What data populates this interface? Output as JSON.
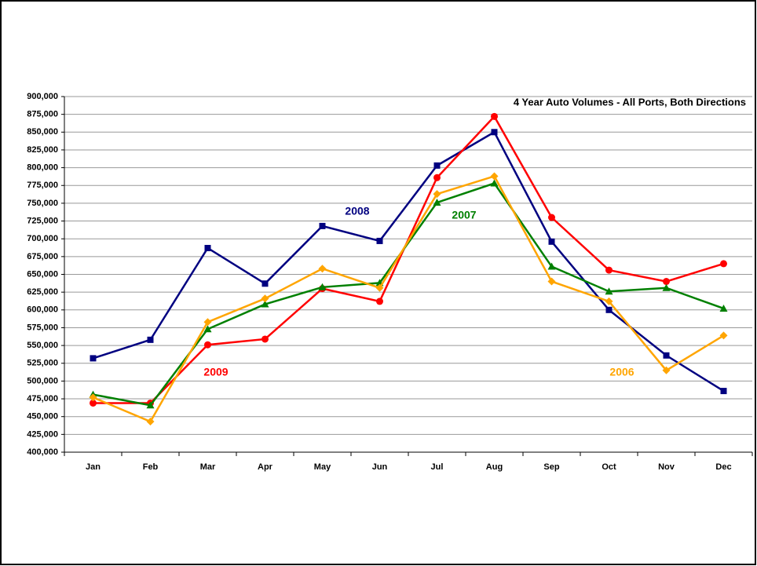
{
  "chart_data": {
    "type": "line",
    "title": "4 Year Auto Volumes - All Ports, Both Directions",
    "categories": [
      "Jan",
      "Feb",
      "Mar",
      "Apr",
      "May",
      "Jun",
      "Jul",
      "Aug",
      "Sep",
      "Oct",
      "Nov",
      "Dec"
    ],
    "series": [
      {
        "name": "2008",
        "color": "#000080",
        "marker": "square",
        "values": [
          532000,
          558000,
          687000,
          637000,
          718000,
          697000,
          803000,
          850000,
          696000,
          600000,
          536000,
          486000
        ]
      },
      {
        "name": "2009",
        "color": "#ff0000",
        "marker": "circle",
        "values": [
          469000,
          469000,
          551000,
          559000,
          630000,
          612000,
          786000,
          872000,
          730000,
          656000,
          640000,
          665000
        ]
      },
      {
        "name": "2007",
        "color": "#008000",
        "marker": "triangle",
        "values": [
          481000,
          466000,
          573000,
          608000,
          632000,
          638000,
          751000,
          778000,
          661000,
          626000,
          631000,
          602000
        ]
      },
      {
        "name": "2006",
        "color": "#ffa500",
        "marker": "diamond",
        "values": [
          477000,
          443000,
          583000,
          616000,
          658000,
          631000,
          763000,
          788000,
          640000,
          612000,
          515000,
          564000
        ]
      }
    ],
    "ylim": [
      400000,
      900000
    ],
    "yticks": [
      {
        "value": 400000,
        "label": "400,000"
      },
      {
        "value": 425000,
        "label": "425,000"
      },
      {
        "value": 450000,
        "label": "450,000"
      },
      {
        "value": 475000,
        "label": "475,000"
      },
      {
        "value": 500000,
        "label": "500,000"
      },
      {
        "value": 525000,
        "label": "525,000"
      },
      {
        "value": 550000,
        "label": "550,000"
      },
      {
        "value": 575000,
        "label": "575,000"
      },
      {
        "value": 600000,
        "label": "600,000"
      },
      {
        "value": 625000,
        "label": "625,000"
      },
      {
        "value": 650000,
        "label": "650,000"
      },
      {
        "value": 675000,
        "label": "675,000"
      },
      {
        "value": 700000,
        "label": "700,000"
      },
      {
        "value": 725000,
        "label": "725,000"
      },
      {
        "value": 750000,
        "label": "750,000"
      },
      {
        "value": 775000,
        "label": "775,000"
      },
      {
        "value": 800000,
        "label": "800,000"
      },
      {
        "value": 825000,
        "label": "825,000"
      },
      {
        "value": 850000,
        "label": "850,000"
      },
      {
        "value": 875000,
        "label": "875,000"
      },
      {
        "value": 900000,
        "label": "900,000"
      }
    ],
    "grid": true
  }
}
